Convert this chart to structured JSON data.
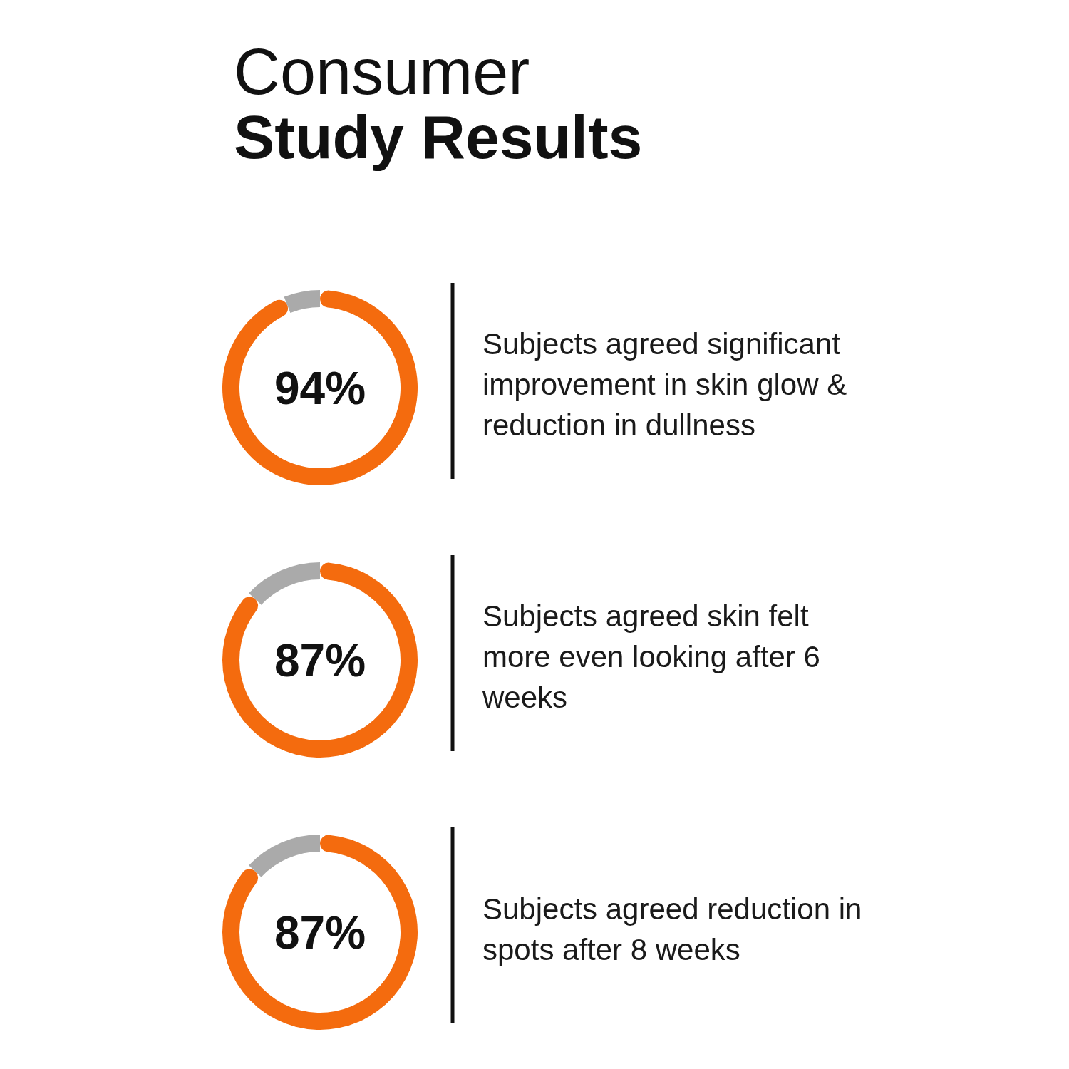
{
  "chart_data": [
    {
      "type": "donut",
      "title": "Consumer Study Results",
      "categories": [
        null,
        null
      ],
      "values": [
        94,
        6
      ],
      "colors": [
        "#f46b0e",
        "#aaaaaa"
      ],
      "value_labels": [
        "94%",
        null
      ],
      "annotations": [
        "Subjects agreed significant improvement in skin glow & reduction in dullness"
      ]
    },
    {
      "type": "donut",
      "categories": [
        null,
        null
      ],
      "values": [
        87,
        13
      ],
      "colors": [
        "#f46b0e",
        "#aaaaaa"
      ],
      "value_labels": [
        "87%",
        null
      ],
      "annotations": [
        "Subjects agreed skin felt more even looking after 6 weeks"
      ]
    },
    {
      "type": "donut",
      "categories": [
        null,
        null
      ],
      "values": [
        87,
        13
      ],
      "colors": [
        "#f46b0e",
        "#aaaaaa"
      ],
      "value_labels": [
        "87%",
        null
      ],
      "annotations": [
        "Subjects agreed reduction in spots after 8 weeks"
      ]
    }
  ]
}
